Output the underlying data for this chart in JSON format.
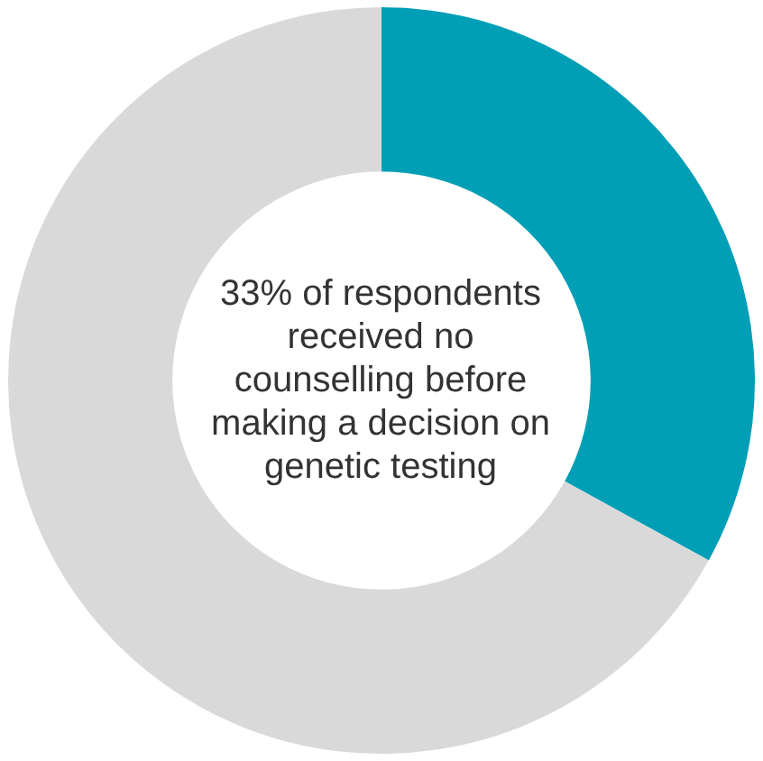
{
  "chart_data": {
    "type": "donut",
    "categories": [
      null,
      null
    ],
    "values": [
      33,
      67
    ],
    "colors": [
      "#009fb5",
      "#d9d9d9"
    ],
    "annotations": [
      "33% of respondents received no counselling before making a decision on genetic testing"
    ]
  }
}
